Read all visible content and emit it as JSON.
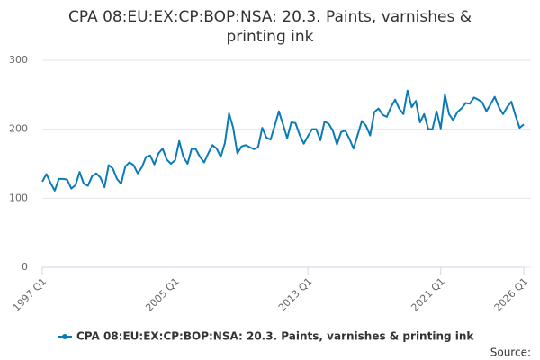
{
  "chart_data": {
    "type": "line",
    "title": "CPA 08:EU:EX:CP:BOP:NSA: 20.3. Paints, varnishes & printing ink",
    "source": "Source:",
    "categories": [
      "1997 Q1",
      null,
      null,
      null,
      null,
      null,
      null,
      null,
      null,
      null,
      null,
      null,
      null,
      null,
      null,
      null,
      null,
      null,
      null,
      null,
      null,
      null,
      null,
      null,
      null,
      null,
      null,
      null,
      null,
      null,
      null,
      null,
      "2005 Q1",
      null,
      null,
      null,
      null,
      null,
      null,
      null,
      null,
      null,
      null,
      null,
      null,
      null,
      null,
      null,
      null,
      null,
      null,
      null,
      null,
      null,
      null,
      null,
      null,
      null,
      null,
      null,
      null,
      null,
      null,
      null,
      "2013 Q1",
      null,
      null,
      null,
      null,
      null,
      null,
      null,
      null,
      null,
      null,
      null,
      null,
      null,
      null,
      null,
      null,
      null,
      null,
      null,
      null,
      null,
      null,
      null,
      null,
      null,
      null,
      null,
      null,
      null,
      null,
      null,
      "2021 Q1",
      null,
      null,
      null,
      null,
      null,
      null,
      null,
      null,
      null,
      null,
      null,
      null,
      null,
      null,
      null,
      null,
      null,
      null,
      null,
      "2026 Q1"
    ],
    "series": [
      {
        "name": "CPA 08:EU:EX:CP:BOP:NSA: 20.3. Paints, varnishes & printing ink",
        "color": "#0b7bb8",
        "values": [
          124,
          135,
          122,
          111,
          128,
          128,
          127,
          114,
          119,
          138,
          121,
          118,
          132,
          136,
          130,
          116,
          148,
          143,
          128,
          121,
          146,
          152,
          148,
          136,
          145,
          160,
          162,
          149,
          165,
          172,
          156,
          150,
          155,
          183,
          160,
          150,
          172,
          171,
          160,
          152,
          165,
          177,
          172,
          160,
          180,
          223,
          202,
          165,
          175,
          177,
          174,
          171,
          174,
          202,
          188,
          185,
          205,
          226,
          207,
          187,
          210,
          209,
          192,
          179,
          190,
          200,
          200,
          184,
          211,
          208,
          198,
          178,
          196,
          198,
          186,
          172,
          192,
          212,
          205,
          191,
          225,
          230,
          221,
          218,
          232,
          243,
          230,
          222,
          256,
          232,
          241,
          210,
          222,
          200,
          200,
          226,
          201,
          250,
          222,
          213,
          225,
          230,
          238,
          237,
          246,
          243,
          239,
          226,
          236,
          247,
          232,
          222,
          232,
          240,
          220,
          202,
          207
        ]
      }
    ],
    "ylim": [
      0,
      300
    ],
    "yticks": [
      0,
      100,
      200,
      300
    ],
    "grid": true
  }
}
